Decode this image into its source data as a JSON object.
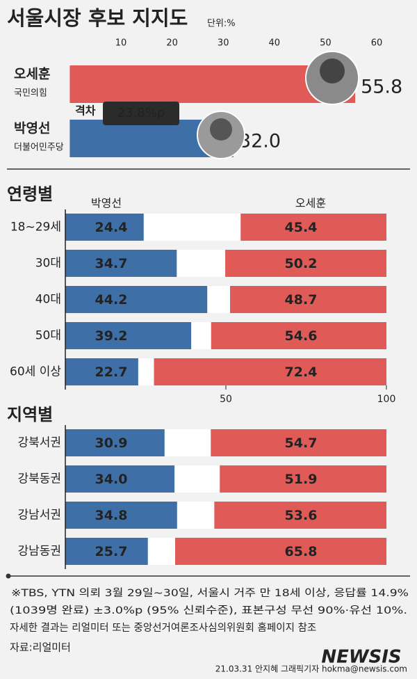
{
  "chart_data": [
    {
      "type": "bar",
      "title": "서울시장 후보 지지도",
      "unit": "단위:%",
      "categories": [
        "오세훈",
        "박영선"
      ],
      "parties": [
        "국민의힘",
        "더불어민주당"
      ],
      "values": [
        55.8,
        32.0
      ],
      "value_labels": [
        "55.8",
        "32.0"
      ],
      "colors": [
        "#e05b57",
        "#3e6fa6"
      ],
      "xlim": [
        0,
        63
      ],
      "xticks": [
        10,
        20,
        30,
        40,
        50,
        60
      ],
      "annotation": {
        "label": "격차",
        "value": "23.8%p"
      }
    },
    {
      "type": "opposed_bar",
      "title": "연령별",
      "categories": [
        "18~29세",
        "30대",
        "40대",
        "50대",
        "60세 이상"
      ],
      "series": [
        {
          "name": "박영선",
          "color": "#3e6fa6",
          "values": [
            24.4,
            34.7,
            44.2,
            39.2,
            22.7
          ]
        },
        {
          "name": "오세훈",
          "color": "#e05b57",
          "values": [
            45.4,
            50.2,
            48.7,
            54.6,
            72.4
          ]
        }
      ],
      "xlim": [
        0,
        100
      ],
      "xticks": [
        50,
        100
      ]
    },
    {
      "type": "opposed_bar",
      "title": "지역별",
      "categories": [
        "강북서권",
        "강북동권",
        "강남서권",
        "강남동권"
      ],
      "series": [
        {
          "name": "박영선",
          "color": "#3e6fa6",
          "values": [
            30.9,
            34.0,
            34.8,
            25.7
          ],
          "value_labels": [
            "30.9",
            "34.0",
            "34.8",
            "25.7"
          ]
        },
        {
          "name": "오세훈",
          "color": "#e05b57",
          "values": [
            54.7,
            51.9,
            53.6,
            65.8
          ]
        }
      ],
      "xlim": [
        0,
        100
      ]
    }
  ],
  "footer": {
    "notes": [
      "※TBS, YTN 의뢰 3월 29일~30일, 서울시 거주 만 18세 이상, 응답률 14.9%",
      "(1039명 완료) ±3.0%p (95% 신뢰수준), 표본구성 무선 90%·유선 10%.",
      "자세한 결과는 리얼미터 또는 중앙선거여론조사심의위원회 홈페이지 참조"
    ],
    "source": "자료:리얼미터",
    "credit": "21.03.31 안지혜 그래픽기자 hokma@newsis.com",
    "watermark": "NEWSIS"
  }
}
